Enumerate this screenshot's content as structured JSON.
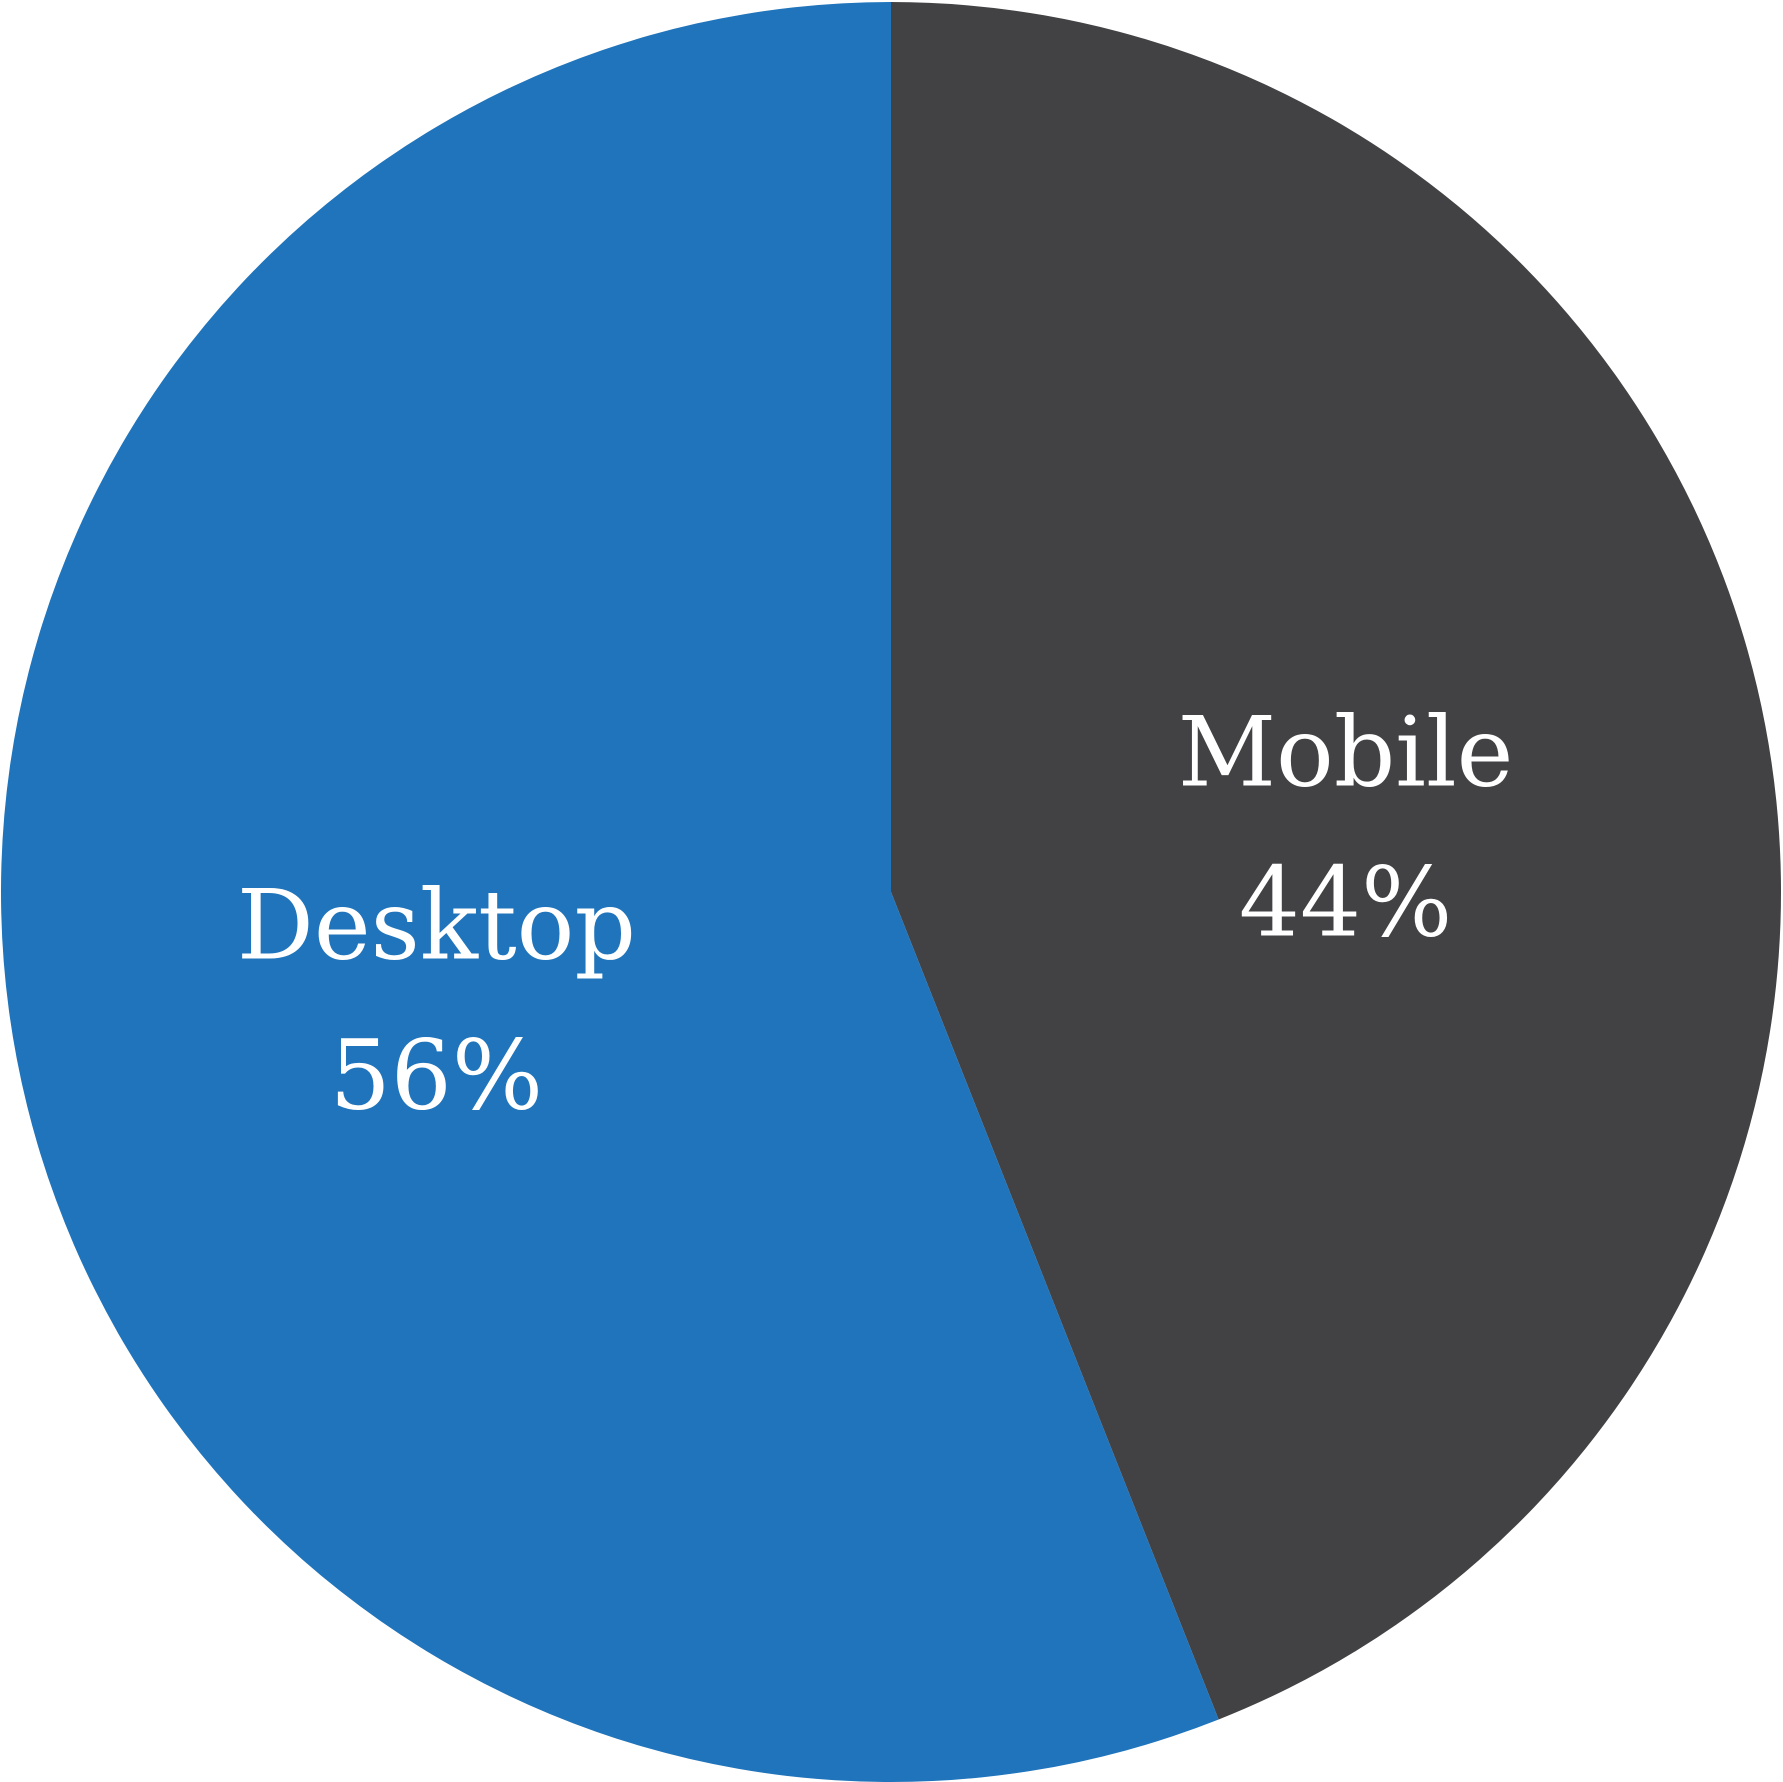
{
  "chart_data": {
    "type": "pie",
    "slices": [
      {
        "label": "Mobile",
        "value": 44,
        "value_label": "44%",
        "color": "#424244"
      },
      {
        "label": "Desktop",
        "value": 56,
        "value_label": "56%",
        "color": "#1f74bb"
      }
    ],
    "start_angle_deg": 0,
    "direction": "clockwise",
    "legend": "none",
    "labels_inside": true
  }
}
